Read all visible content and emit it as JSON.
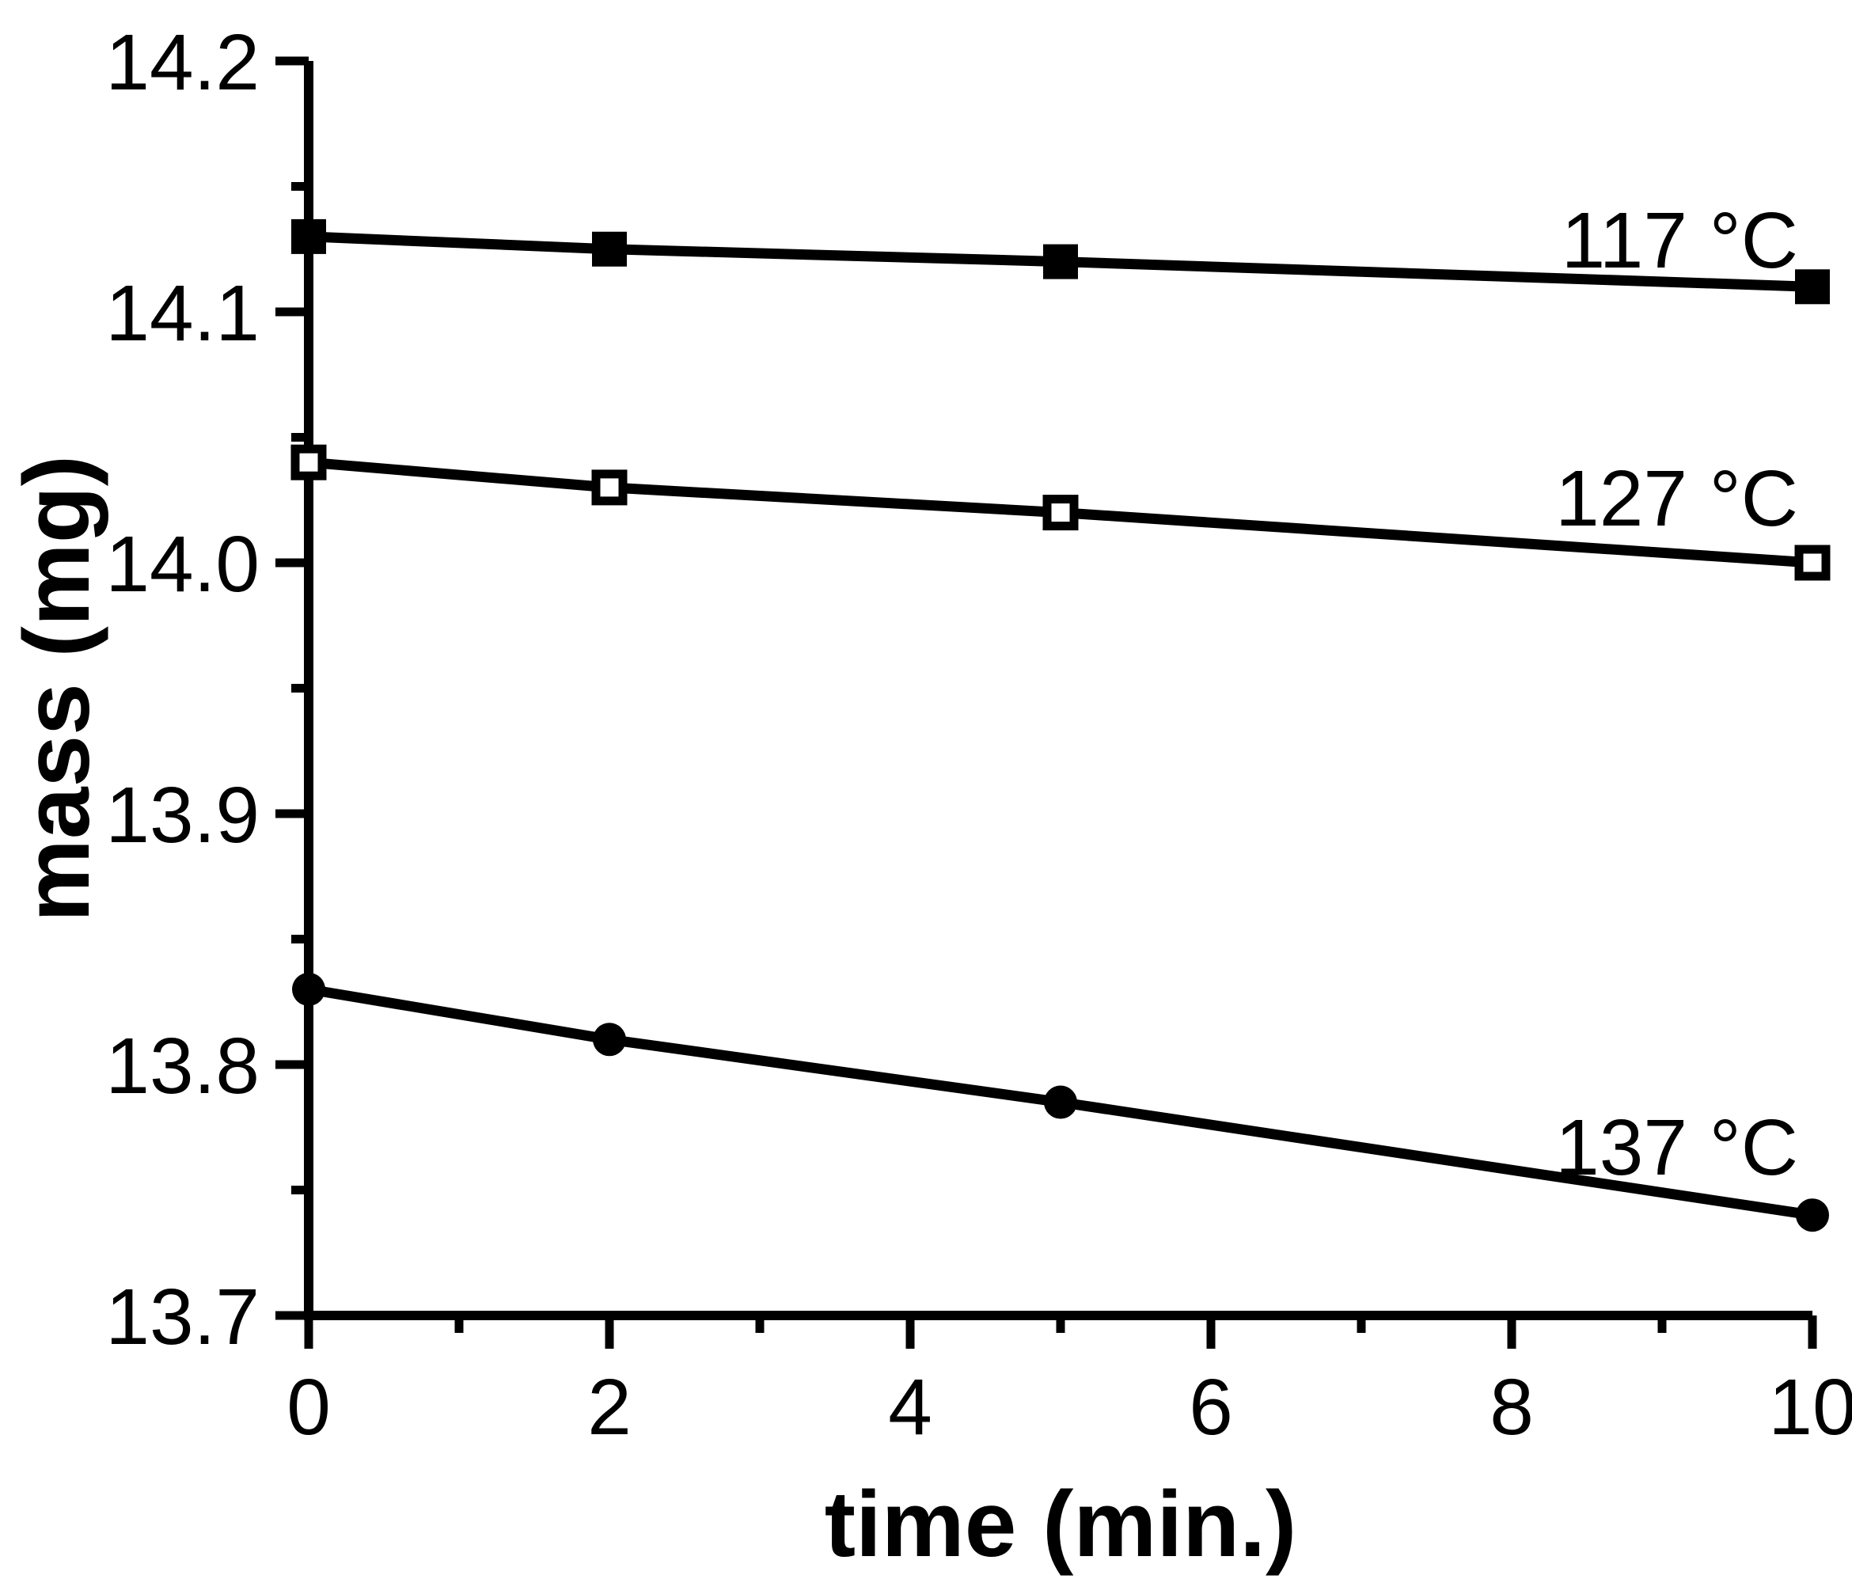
{
  "chart_data": {
    "type": "line",
    "title": "",
    "xlabel": "time (min.)",
    "ylabel": "mass (mg)",
    "x": [
      0,
      2,
      5,
      10
    ],
    "series": [
      {
        "name": "117 °C",
        "marker": "filled-square",
        "values": [
          14.13,
          14.125,
          14.12,
          14.11
        ]
      },
      {
        "name": "127 °C",
        "marker": "open-square",
        "values": [
          14.04,
          14.03,
          14.02,
          14.0
        ]
      },
      {
        "name": "137 °C",
        "marker": "filled-circle",
        "values": [
          13.83,
          13.81,
          13.785,
          13.74
        ]
      }
    ],
    "xlim": [
      0,
      10
    ],
    "ylim": [
      13.7,
      14.2
    ],
    "x_major_ticks": [
      0,
      2,
      4,
      6,
      8,
      10
    ],
    "x_minor_ticks": [
      1,
      3,
      5,
      7,
      9
    ],
    "x_tick_labels": [
      "0",
      "2",
      "4",
      "6",
      "8",
      "10"
    ],
    "y_major_ticks": [
      13.7,
      13.8,
      13.9,
      14.0,
      14.1,
      14.2
    ],
    "y_minor_ticks": [
      13.75,
      13.85,
      13.95,
      14.05,
      14.15
    ],
    "y_tick_labels": [
      "13.7",
      "13.8",
      "13.9",
      "14.0",
      "14.1",
      "14.2"
    ],
    "grid": false,
    "legend": "inline-labels-right",
    "colors": {
      "foreground": "#000000",
      "background": "#ffffff"
    }
  }
}
